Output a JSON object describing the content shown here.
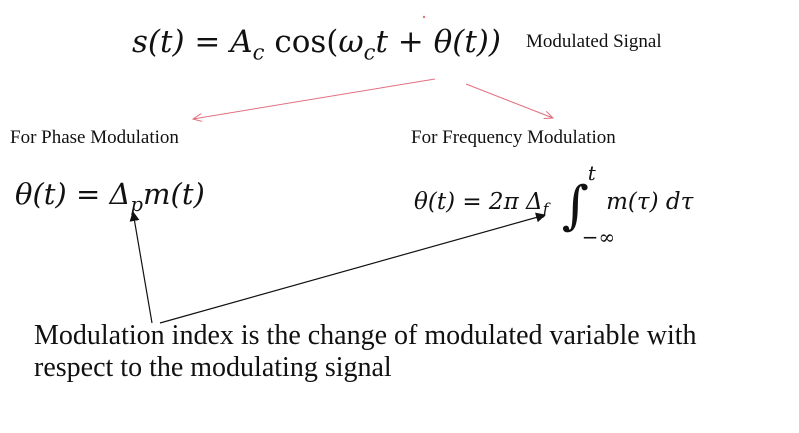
{
  "main_equation": {
    "lhs": "s(t)",
    "eq": "=",
    "amp": "A",
    "amp_sub": "c",
    "func": "cos(",
    "omega": "ω",
    "omega_sub": "c",
    "rest": "t + θ(t))"
  },
  "main_label": "Modulated Signal",
  "phase": {
    "label": "For Phase Modulation",
    "lhs": "θ(t) = Δ",
    "sub": "p",
    "rhs": "m(t)"
  },
  "frequency": {
    "label": "For Frequency Modulation",
    "lhs": "θ(t) = 2π Δ",
    "sub": "f",
    "upper": "t",
    "lower": "−∞",
    "integrand": "m(τ) dτ"
  },
  "note": "Modulation index is the change of modulated variable with respect to the modulating signal",
  "colors": {
    "arrow_red": "#e07080",
    "arrow_black": "#111111"
  }
}
